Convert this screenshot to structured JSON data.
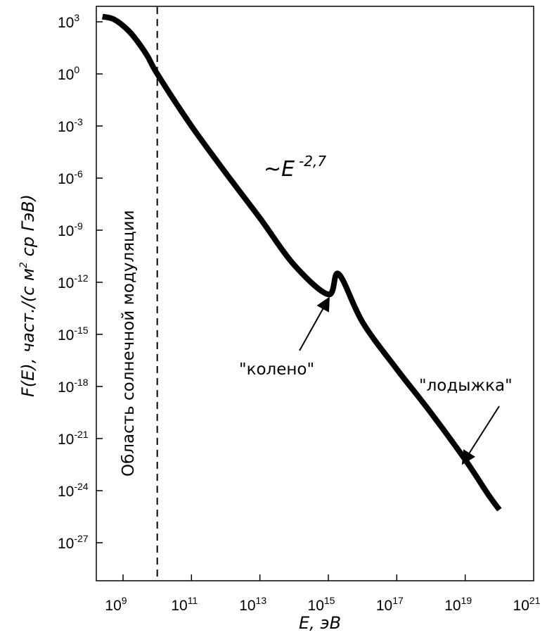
{
  "chart_data": {
    "type": "line",
    "xlabel": "E, эВ",
    "ylabel": "F(E), част./(с м",
    "ylabel_sup": "2",
    "ylabel_tail": " ср ГэВ)",
    "x_scale": "log",
    "y_scale": "log",
    "xlim": [
      100000000.0,
      1e+21
    ],
    "ylim": [
      1e-29,
      10000.0
    ],
    "x_ticks": [
      {
        "base": "10",
        "exp": "9",
        "value": 1000000000.0
      },
      {
        "base": "10",
        "exp": "11",
        "value": 100000000000.0
      },
      {
        "base": "10",
        "exp": "13",
        "value": 10000000000000.0
      },
      {
        "base": "10",
        "exp": "15",
        "value": 1000000000000000.0
      },
      {
        "base": "10",
        "exp": "17",
        "value": 1e+17
      },
      {
        "base": "10",
        "exp": "19",
        "value": 1e+19
      },
      {
        "base": "10",
        "exp": "21",
        "value": 1e+21
      }
    ],
    "y_ticks": [
      {
        "base": "10",
        "exp": "3",
        "value": 1000.0
      },
      {
        "base": "10",
        "exp": "0",
        "value": 1.0
      },
      {
        "base": "10",
        "exp": "-3",
        "value": 0.001
      },
      {
        "base": "10",
        "exp": "-6",
        "value": 1e-06
      },
      {
        "base": "10",
        "exp": "-9",
        "value": 1e-09
      },
      {
        "base": "10",
        "exp": "-12",
        "value": 1e-12
      },
      {
        "base": "10",
        "exp": "-15",
        "value": 1e-15
      },
      {
        "base": "10",
        "exp": "-18",
        "value": 1e-18
      },
      {
        "base": "10",
        "exp": "-21",
        "value": 1e-21
      },
      {
        "base": "10",
        "exp": "-24",
        "value": 1e-24
      },
      {
        "base": "10",
        "exp": "-27",
        "value": 1e-27
      }
    ],
    "series": [
      {
        "color": "#000000",
        "x": [
          250000000.0,
          500000000.0,
          1000000000.0,
          2000000000.0,
          5000000000.0,
          10000000000.0,
          100000000000.0,
          1000000000000.0,
          10000000000000.0,
          100000000000000.0,
          1000000000000000.0,
          2000000000000000.0,
          1e+16,
          1e+17,
          1e+18,
          1e+19,
          5e+19,
          1e+20
        ],
        "y": [
          2000,
          1500,
          600,
          150,
          12,
          1,
          0.001,
          2e-06,
          5e-09,
          1e-11,
          2e-13,
          3e-12,
          5e-15,
          1e-17,
          3e-20,
          6e-23,
          5e-25,
          8e-26
        ]
      }
    ],
    "vline": {
      "x": 10000000000.0,
      "style": "dashed"
    },
    "annotations": {
      "solar": "Область солнечной модуляции",
      "power_law_base": "~E",
      "power_law_exp": "-2,7",
      "knee": "\"колено\"",
      "ankle": "\"лодыжка\""
    },
    "grid": false,
    "legend": "none"
  }
}
